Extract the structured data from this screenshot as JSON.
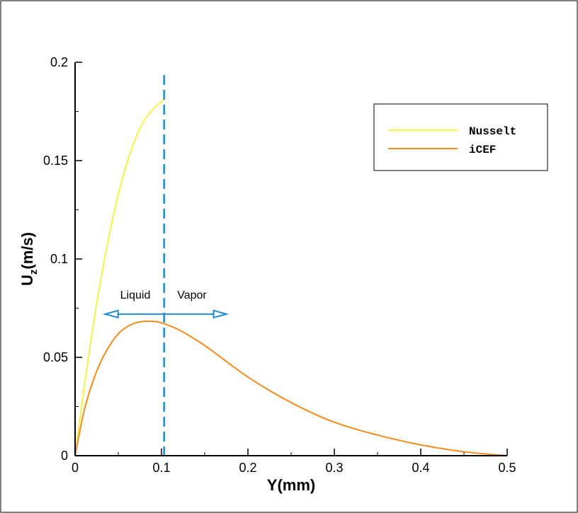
{
  "chart_data": {
    "type": "line",
    "title": "",
    "xlabel": "Y(mm)",
    "ylabel_main": "U",
    "ylabel_sub": "z",
    "ylabel_tail": "(m/s)",
    "xlim": [
      0,
      0.5
    ],
    "ylim": [
      0,
      0.2
    ],
    "x_ticks": [
      0,
      0.1,
      0.2,
      0.3,
      0.4,
      0.5
    ],
    "x_tick_labels": [
      "0",
      "0.1",
      "0.2",
      "0.3",
      "0.4",
      "0.5"
    ],
    "y_ticks": [
      0,
      0.05,
      0.1,
      0.15,
      0.2
    ],
    "y_tick_labels": [
      "0",
      "0.05",
      "0.1",
      "0.15",
      "0.2"
    ],
    "grid": false,
    "legend_position": "top-right",
    "interface_x": 0.103,
    "annotations": {
      "left": "Liquid",
      "right": "Vapor"
    },
    "arrow_x_range": [
      0.035,
      0.175
    ],
    "arrow_y": 0.072,
    "colors": {
      "interface": "#1f8ad6",
      "arrow": "#1f8ad6"
    },
    "series": [
      {
        "name": "Nusselt",
        "color": "#f2f24a",
        "x": [
          0,
          0.01,
          0.02,
          0.03,
          0.04,
          0.05,
          0.06,
          0.07,
          0.08,
          0.09,
          0.1,
          0.103
        ],
        "y": [
          0,
          0.0335,
          0.0635,
          0.09,
          0.1131,
          0.1327,
          0.1488,
          0.1613,
          0.1704,
          0.176,
          0.18,
          0.1813
        ]
      },
      {
        "name": "iCEF",
        "color": "#f28c1e",
        "x": [
          0,
          0.01,
          0.02,
          0.03,
          0.04,
          0.05,
          0.06,
          0.07,
          0.08,
          0.09,
          0.1,
          0.12,
          0.15,
          0.2,
          0.25,
          0.3,
          0.35,
          0.4,
          0.45,
          0.5
        ],
        "y": [
          0,
          0.022,
          0.037,
          0.048,
          0.056,
          0.062,
          0.0655,
          0.0675,
          0.0683,
          0.0683,
          0.0675,
          0.064,
          0.056,
          0.04,
          0.027,
          0.017,
          0.0105,
          0.0055,
          0.002,
          0.0
        ]
      }
    ]
  }
}
